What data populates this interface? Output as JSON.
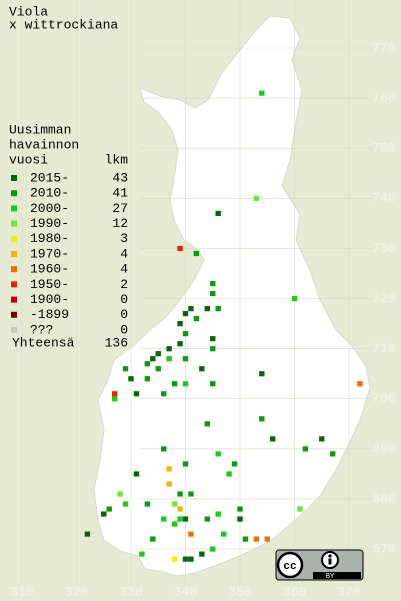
{
  "title": [
    "Viola",
    "x wittrockiana"
  ],
  "legend": {
    "header": [
      "Uusimman",
      "havainnon",
      "vuosi"
    ],
    "count_header": "lkm",
    "rows": [
      {
        "label": "2015-",
        "count": 43,
        "color": "#0a640a"
      },
      {
        "label": "2010-",
        "count": 41,
        "color": "#0e9a0e"
      },
      {
        "label": "2000-",
        "count": 27,
        "color": "#1fc81f"
      },
      {
        "label": "1990-",
        "count": 12,
        "color": "#6ee63a"
      },
      {
        "label": "1980-",
        "count": 3,
        "color": "#f0f000"
      },
      {
        "label": "1970-",
        "count": 4,
        "color": "#f0b400"
      },
      {
        "label": "1960-",
        "count": 4,
        "color": "#f06e00"
      },
      {
        "label": "1950-",
        "count": 2,
        "color": "#e02800"
      },
      {
        "label": "1900-",
        "count": 0,
        "color": "#c00000"
      },
      {
        "label": "-1899",
        "count": 0,
        "color": "#800000"
      },
      {
        "label": "???",
        "count": 0,
        "color": "#c8c8c8"
      }
    ],
    "total_label": "Yhteensä",
    "total": 136
  },
  "xticks": [
    310,
    320,
    330,
    340,
    350,
    360,
    370
  ],
  "yticks": [
    670,
    680,
    690,
    700,
    710,
    720,
    730,
    740,
    750,
    760,
    770
  ],
  "observations": [
    [
      354,
      761,
      2
    ],
    [
      353,
      740,
      3
    ],
    [
      346,
      737,
      0
    ],
    [
      339,
      730,
      7
    ],
    [
      342,
      729,
      1
    ],
    [
      345,
      723,
      1
    ],
    [
      345,
      721,
      1
    ],
    [
      341,
      718,
      0
    ],
    [
      340,
      717,
      0
    ],
    [
      339,
      715,
      0
    ],
    [
      342,
      716,
      1
    ],
    [
      344,
      718,
      0
    ],
    [
      346,
      718,
      1
    ],
    [
      340,
      713,
      1
    ],
    [
      339,
      711,
      0
    ],
    [
      337,
      710,
      0
    ],
    [
      335,
      709,
      0
    ],
    [
      334,
      708,
      0
    ],
    [
      333,
      707,
      1
    ],
    [
      335,
      706,
      1
    ],
    [
      337,
      708,
      2
    ],
    [
      340,
      708,
      1
    ],
    [
      338,
      703,
      1
    ],
    [
      333,
      704,
      1
    ],
    [
      331,
      701,
      0
    ],
    [
      329,
      706,
      1
    ],
    [
      330,
      704,
      0
    ],
    [
      327,
      700,
      2
    ],
    [
      345,
      712,
      0
    ],
    [
      345,
      710,
      1
    ],
    [
      343,
      706,
      0
    ],
    [
      340,
      703,
      2
    ],
    [
      345,
      703,
      1
    ],
    [
      354,
      705,
      0
    ],
    [
      360,
      720,
      2
    ],
    [
      372,
      703,
      6
    ],
    [
      327,
      701,
      7
    ],
    [
      336,
      701,
      1
    ],
    [
      344,
      695,
      1
    ],
    [
      354,
      696,
      1
    ],
    [
      356,
      692,
      0
    ],
    [
      365,
      692,
      0
    ],
    [
      362,
      690,
      1
    ],
    [
      367,
      689,
      1
    ],
    [
      346,
      689,
      2
    ],
    [
      349,
      687,
      1
    ],
    [
      348,
      685,
      2
    ],
    [
      337,
      686,
      5
    ],
    [
      337,
      683,
      5
    ],
    [
      339,
      681,
      1
    ],
    [
      341,
      681,
      1
    ],
    [
      338,
      679,
      3
    ],
    [
      339,
      678,
      5
    ],
    [
      339,
      676,
      2
    ],
    [
      338,
      675,
      2
    ],
    [
      340,
      676,
      0
    ],
    [
      336,
      676,
      2
    ],
    [
      334,
      672,
      1
    ],
    [
      329,
      679,
      2
    ],
    [
      328,
      681,
      3
    ],
    [
      326,
      678,
      1
    ],
    [
      322,
      673,
      0
    ],
    [
      325,
      677,
      0
    ],
    [
      333,
      679,
      1
    ],
    [
      344,
      676,
      1
    ],
    [
      346,
      677,
      2
    ],
    [
      350,
      678,
      1
    ],
    [
      350,
      676,
      0
    ],
    [
      351,
      672,
      1
    ],
    [
      353,
      672,
      6
    ],
    [
      355,
      672,
      6
    ],
    [
      341,
      673,
      6
    ],
    [
      345,
      670,
      2
    ],
    [
      343,
      669,
      0
    ],
    [
      341,
      668,
      0
    ],
    [
      340,
      668,
      0
    ],
    [
      338,
      668,
      4
    ],
    [
      332,
      669,
      2
    ],
    [
      361,
      678,
      3
    ],
    [
      347,
      673,
      2
    ],
    [
      340,
      687,
      1
    ],
    [
      336,
      690,
      1
    ],
    [
      331,
      685,
      0
    ]
  ],
  "license": "BY"
}
